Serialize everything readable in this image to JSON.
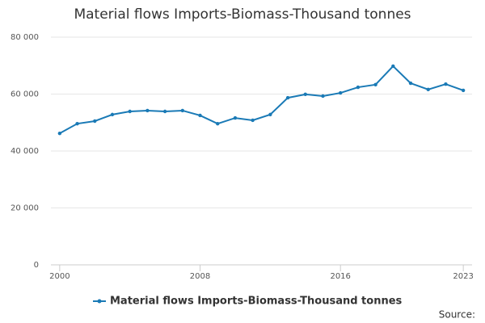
{
  "chart_data": {
    "type": "line",
    "title": "Material flows Imports-Biomass-Thousand tonnes",
    "source_label": "Source:",
    "x": [
      2000,
      2001,
      2002,
      2003,
      2004,
      2005,
      2006,
      2007,
      2008,
      2009,
      2010,
      2011,
      2012,
      2013,
      2014,
      2015,
      2016,
      2017,
      2018,
      2019,
      2020,
      2021,
      2022,
      2023
    ],
    "series": [
      {
        "name": "Material flows Imports-Biomass-Thousand tonnes",
        "color": "#1a7ab6",
        "values": [
          46200,
          49600,
          50500,
          52800,
          53900,
          54200,
          53900,
          54200,
          52500,
          49600,
          51600,
          50800,
          52800,
          58700,
          59900,
          59300,
          60400,
          62400,
          63300,
          69800,
          63800,
          61600,
          63500,
          61300
        ]
      }
    ],
    "xlim": [
      1999.5,
      2023.5
    ],
    "xticks": [
      2000,
      2008,
      2016,
      2023
    ],
    "ylim": [
      0,
      80000
    ],
    "yticks": [
      0,
      {
        "value": 20000,
        "label": "20 000"
      },
      {
        "value": 40000,
        "label": "40 000"
      },
      {
        "value": 60000,
        "label": "60 000"
      },
      {
        "value": 80000,
        "label": "80 000"
      }
    ],
    "grid": true,
    "legend": "bottom"
  }
}
